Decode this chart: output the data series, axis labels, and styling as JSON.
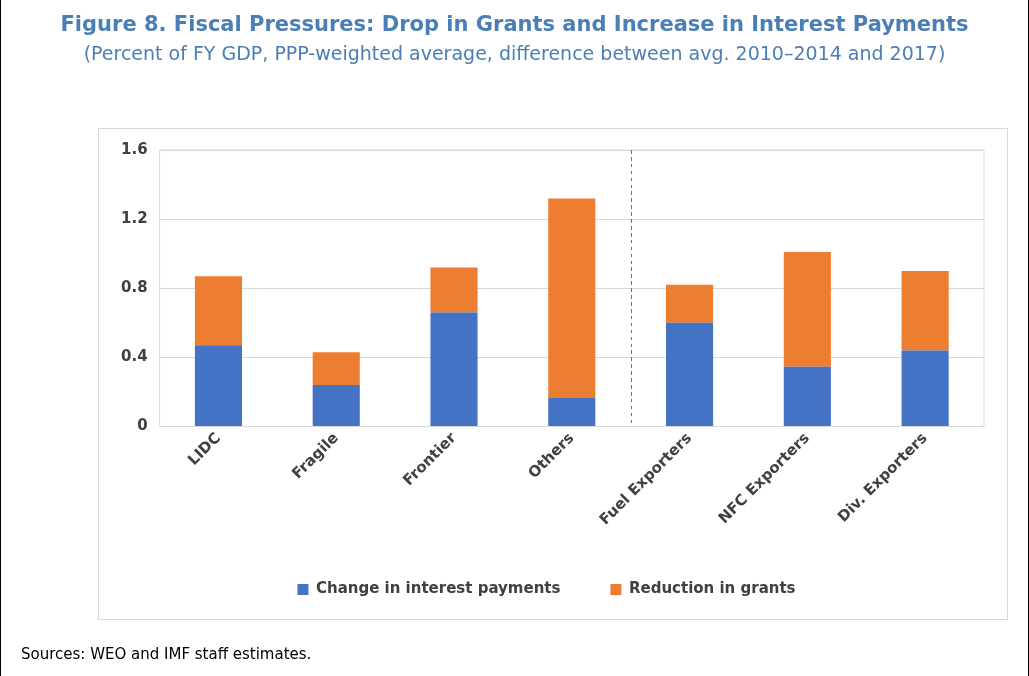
{
  "chart_data": {
    "type": "bar",
    "title": "Figure 8. Fiscal Pressures: Drop in Grants and Increase in Interest Payments",
    "subtitle": "(Percent of FY GDP, PPP-weighted average, difference between avg. 2010–2014 and 2017)",
    "categories": [
      "LIDC",
      "Fragile",
      "Frontier",
      "Others",
      "Fuel Exporters",
      "NFC Exporters",
      "Div. Exporters"
    ],
    "stacked": true,
    "series": [
      {
        "name": "Change in interest payments",
        "color": "#4472c4",
        "values": [
          0.47,
          0.24,
          0.66,
          0.165,
          0.6,
          0.345,
          0.44
        ]
      },
      {
        "name": "Reduction in grants",
        "color": "#ed7d31",
        "values": [
          0.4,
          0.19,
          0.26,
          1.155,
          0.22,
          0.665,
          0.46
        ]
      }
    ],
    "ylim": [
      0,
      1.6
    ],
    "yticks": [
      0,
      0.4,
      0.8,
      1.2,
      1.6
    ],
    "grid": "y",
    "legend": "bottom",
    "annotations": [
      "Sources: WEO and IMF staff estimates."
    ]
  }
}
